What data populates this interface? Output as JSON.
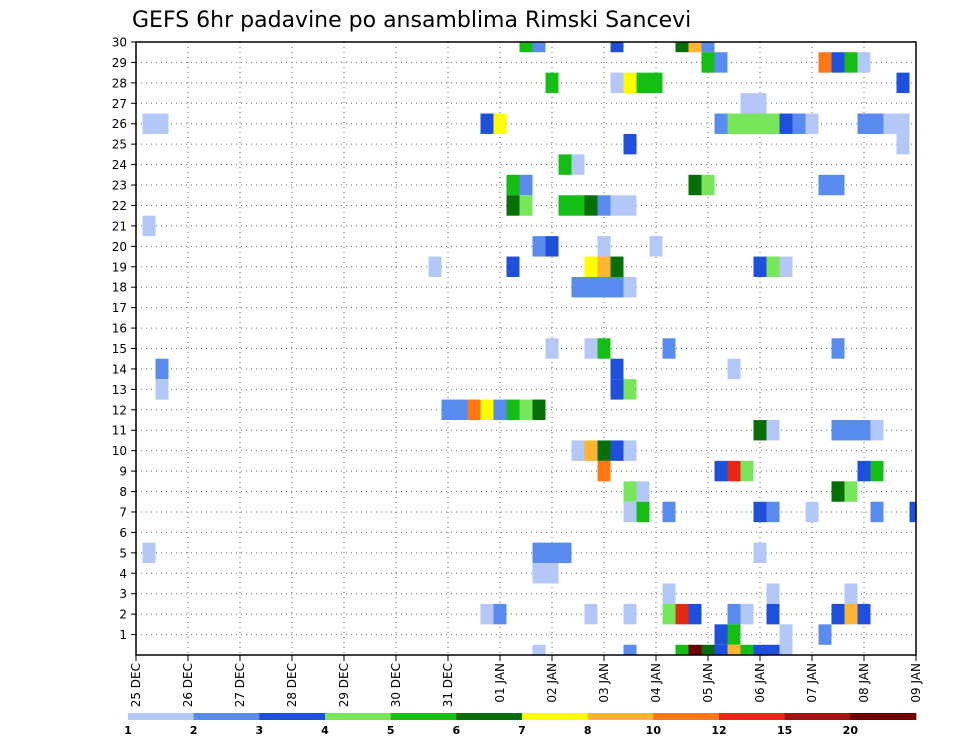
{
  "chart_data": {
    "type": "heatmap",
    "title": "GEFS 6hr padavine po ansamblima Rimski Sancevi",
    "x_ticks": [
      "25 DEC",
      "26 DEC",
      "27 DEC",
      "28 DEC",
      "29 DEC",
      "30 DEC",
      "31 DEC",
      "01 JAN",
      "02 JAN",
      "03 JAN",
      "04 JAN",
      "05 JAN",
      "06 JAN",
      "07 JAN",
      "08 JAN",
      "09 JAN"
    ],
    "y_ticks": [
      "1",
      "2",
      "3",
      "4",
      "5",
      "6",
      "7",
      "8",
      "9",
      "10",
      "11",
      "12",
      "13",
      "14",
      "15",
      "16",
      "17",
      "18",
      "19",
      "20",
      "21",
      "22",
      "23",
      "24",
      "25",
      "26",
      "27",
      "28",
      "29",
      "30"
    ],
    "x_steps_per_day": 4,
    "x_range_steps": [
      0,
      60
    ],
    "y_range": [
      0,
      30
    ],
    "colorbar": {
      "labels": [
        "1",
        "2",
        "3",
        "4",
        "5",
        "6",
        "7",
        "8",
        "10",
        "12",
        "15",
        "20"
      ],
      "colors": [
        "#b4c8f8",
        "#5a8cf0",
        "#1e50dc",
        "#78e65a",
        "#14be14",
        "#086e08",
        "#ffff00",
        "#ffb432",
        "#ff7814",
        "#e62814",
        "#a01414",
        "#6e0000"
      ]
    },
    "cells": [
      [
        30,
        30,
        5
      ],
      [
        30,
        31,
        2
      ],
      [
        30,
        37,
        3
      ],
      [
        30,
        42,
        6
      ],
      [
        30,
        43,
        8
      ],
      [
        30,
        44,
        2
      ],
      [
        29,
        44,
        5
      ],
      [
        29,
        45,
        2
      ],
      [
        29,
        53,
        9
      ],
      [
        29,
        54,
        3
      ],
      [
        29,
        55,
        5
      ],
      [
        29,
        56,
        1
      ],
      [
        28,
        32,
        5
      ],
      [
        28,
        37,
        1
      ],
      [
        28,
        38,
        7
      ],
      [
        28,
        39,
        5
      ],
      [
        28,
        40,
        5
      ],
      [
        28,
        59,
        3
      ],
      [
        27,
        47,
        1
      ],
      [
        27,
        48,
        1
      ],
      [
        26,
        1,
        1
      ],
      [
        26,
        2,
        1
      ],
      [
        26,
        27,
        3
      ],
      [
        26,
        28,
        7
      ],
      [
        26,
        45,
        2
      ],
      [
        26,
        46,
        4
      ],
      [
        26,
        47,
        4
      ],
      [
        26,
        48,
        4
      ],
      [
        26,
        49,
        4
      ],
      [
        26,
        50,
        3
      ],
      [
        26,
        51,
        2
      ],
      [
        26,
        52,
        1
      ],
      [
        26,
        56,
        2
      ],
      [
        26,
        57,
        2
      ],
      [
        26,
        58,
        1
      ],
      [
        26,
        59,
        1
      ],
      [
        25,
        38,
        3
      ],
      [
        25,
        59,
        1
      ],
      [
        24,
        33,
        5
      ],
      [
        24,
        34,
        1
      ],
      [
        23,
        29,
        5
      ],
      [
        23,
        30,
        2
      ],
      [
        23,
        43,
        6
      ],
      [
        23,
        44,
        4
      ],
      [
        23,
        53,
        2
      ],
      [
        23,
        54,
        2
      ],
      [
        22,
        29,
        6
      ],
      [
        22,
        30,
        4
      ],
      [
        22,
        33,
        5
      ],
      [
        22,
        34,
        5
      ],
      [
        22,
        35,
        6
      ],
      [
        22,
        36,
        2
      ],
      [
        22,
        37,
        1
      ],
      [
        22,
        38,
        1
      ],
      [
        21,
        1,
        1
      ],
      [
        20,
        31,
        2
      ],
      [
        20,
        32,
        3
      ],
      [
        20,
        36,
        1
      ],
      [
        20,
        40,
        1
      ],
      [
        19,
        23,
        1
      ],
      [
        19,
        29,
        3
      ],
      [
        19,
        35,
        7
      ],
      [
        19,
        36,
        8
      ],
      [
        19,
        37,
        6
      ],
      [
        19,
        48,
        3
      ],
      [
        19,
        49,
        4
      ],
      [
        19,
        50,
        1
      ],
      [
        18,
        34,
        2
      ],
      [
        18,
        35,
        2
      ],
      [
        18,
        36,
        2
      ],
      [
        18,
        37,
        2
      ],
      [
        18,
        38,
        1
      ],
      [
        15,
        32,
        1
      ],
      [
        15,
        35,
        1
      ],
      [
        15,
        36,
        5
      ],
      [
        15,
        41,
        2
      ],
      [
        15,
        54,
        2
      ],
      [
        14,
        2,
        2
      ],
      [
        14,
        37,
        3
      ],
      [
        14,
        46,
        1
      ],
      [
        13,
        2,
        1
      ],
      [
        13,
        37,
        3
      ],
      [
        13,
        38,
        4
      ],
      [
        12,
        24,
        2
      ],
      [
        12,
        25,
        2
      ],
      [
        12,
        26,
        9
      ],
      [
        12,
        27,
        7
      ],
      [
        12,
        28,
        2
      ],
      [
        12,
        29,
        5
      ],
      [
        12,
        30,
        4
      ],
      [
        12,
        31,
        6
      ],
      [
        11,
        48,
        6
      ],
      [
        11,
        49,
        1
      ],
      [
        11,
        54,
        2
      ],
      [
        11,
        55,
        2
      ],
      [
        11,
        56,
        2
      ],
      [
        11,
        57,
        1
      ],
      [
        10,
        34,
        1
      ],
      [
        10,
        35,
        8
      ],
      [
        10,
        36,
        6
      ],
      [
        10,
        37,
        3
      ],
      [
        10,
        38,
        1
      ],
      [
        9,
        36,
        9
      ],
      [
        9,
        45,
        3
      ],
      [
        9,
        46,
        10
      ],
      [
        9,
        47,
        4
      ],
      [
        9,
        56,
        3
      ],
      [
        9,
        57,
        5
      ],
      [
        8,
        38,
        4
      ],
      [
        8,
        39,
        1
      ],
      [
        8,
        54,
        6
      ],
      [
        8,
        55,
        4
      ],
      [
        7,
        38,
        1
      ],
      [
        7,
        39,
        5
      ],
      [
        7,
        41,
        2
      ],
      [
        7,
        48,
        3
      ],
      [
        7,
        49,
        2
      ],
      [
        7,
        52,
        1
      ],
      [
        7,
        57,
        2
      ],
      [
        7,
        60,
        3
      ],
      [
        5,
        1,
        1
      ],
      [
        5,
        31,
        2
      ],
      [
        5,
        32,
        2
      ],
      [
        5,
        33,
        2
      ],
      [
        5,
        48,
        1
      ],
      [
        4,
        31,
        1
      ],
      [
        4,
        32,
        1
      ],
      [
        3,
        41,
        1
      ],
      [
        3,
        49,
        1
      ],
      [
        3,
        55,
        1
      ],
      [
        2,
        27,
        1
      ],
      [
        2,
        28,
        2
      ],
      [
        2,
        35,
        1
      ],
      [
        2,
        38,
        1
      ],
      [
        2,
        41,
        4
      ],
      [
        2,
        42,
        10
      ],
      [
        2,
        43,
        3
      ],
      [
        2,
        46,
        2
      ],
      [
        2,
        47,
        1
      ],
      [
        2,
        49,
        3
      ],
      [
        2,
        54,
        3
      ],
      [
        2,
        55,
        8
      ],
      [
        2,
        56,
        3
      ],
      [
        1,
        45,
        3
      ],
      [
        1,
        46,
        5
      ],
      [
        1,
        50,
        1
      ],
      [
        1,
        53,
        2
      ],
      [
        0,
        31,
        1
      ],
      [
        0,
        38,
        2
      ],
      [
        0,
        42,
        5
      ],
      [
        0,
        43,
        12
      ],
      [
        0,
        44,
        6
      ],
      [
        0,
        45,
        3
      ],
      [
        0,
        46,
        8
      ],
      [
        0,
        47,
        5
      ],
      [
        0,
        48,
        3
      ],
      [
        0,
        49,
        3
      ],
      [
        0,
        50,
        1
      ]
    ]
  }
}
